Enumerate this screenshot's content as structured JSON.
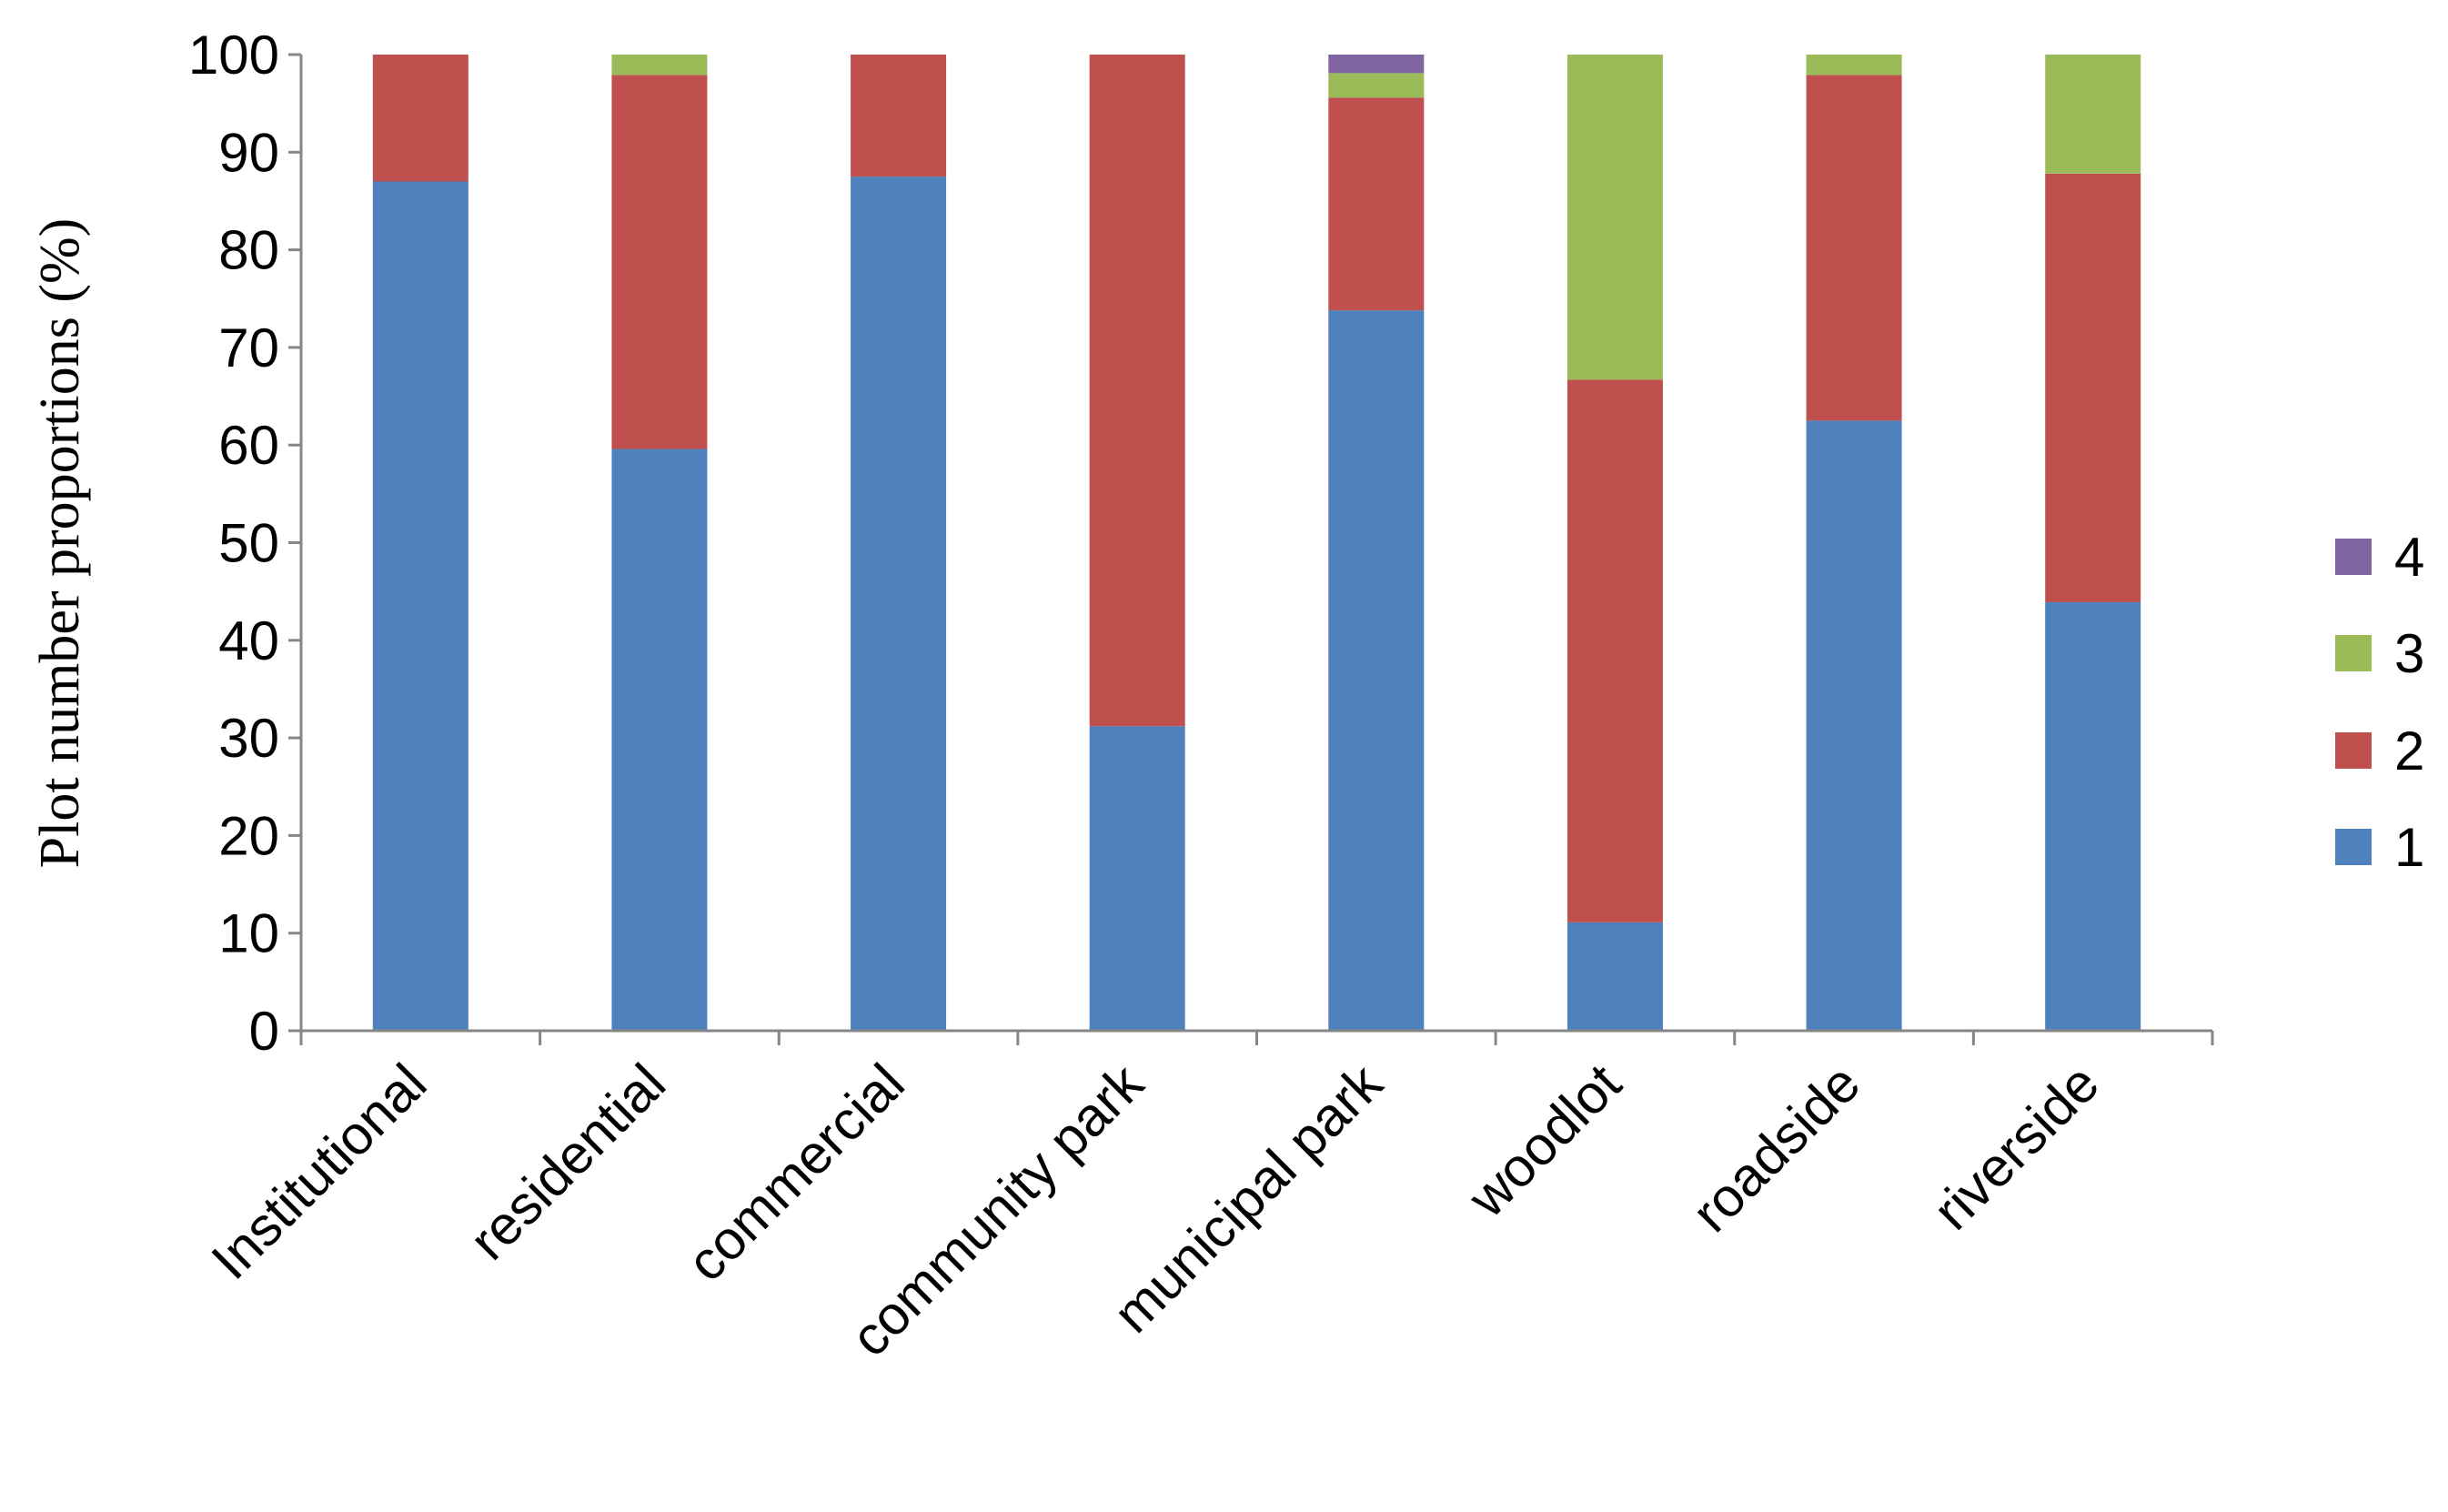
{
  "chart_data": {
    "type": "bar",
    "stacked": true,
    "title": "",
    "xlabel": "",
    "ylabel": "Plot number proportions (%)",
    "ylim": [
      0,
      100
    ],
    "yticks": [
      0,
      10,
      20,
      30,
      40,
      50,
      60,
      70,
      80,
      90,
      100
    ],
    "grid": false,
    "legend_position": "right",
    "categories": [
      "Institutional",
      "residential",
      "commercial",
      "community park",
      "municipal park",
      "woodlot",
      "roadside",
      "riverside"
    ],
    "series": [
      {
        "name": "1",
        "color": "#4F81BD",
        "values": [
          87.0,
          59.6,
          87.5,
          31.2,
          73.8,
          11.1,
          62.5,
          43.9
        ]
      },
      {
        "name": "2",
        "color": "#C0504D",
        "values": [
          13.0,
          38.3,
          12.5,
          68.8,
          21.8,
          55.6,
          35.4,
          43.9
        ]
      },
      {
        "name": "3",
        "color": "#9BBB59",
        "values": [
          0,
          2.1,
          0,
          0,
          2.5,
          33.3,
          2.1,
          12.2
        ]
      },
      {
        "name": "4",
        "color": "#8064A2",
        "values": [
          0,
          0,
          0,
          0,
          1.9,
          0,
          0,
          0
        ]
      }
    ]
  }
}
